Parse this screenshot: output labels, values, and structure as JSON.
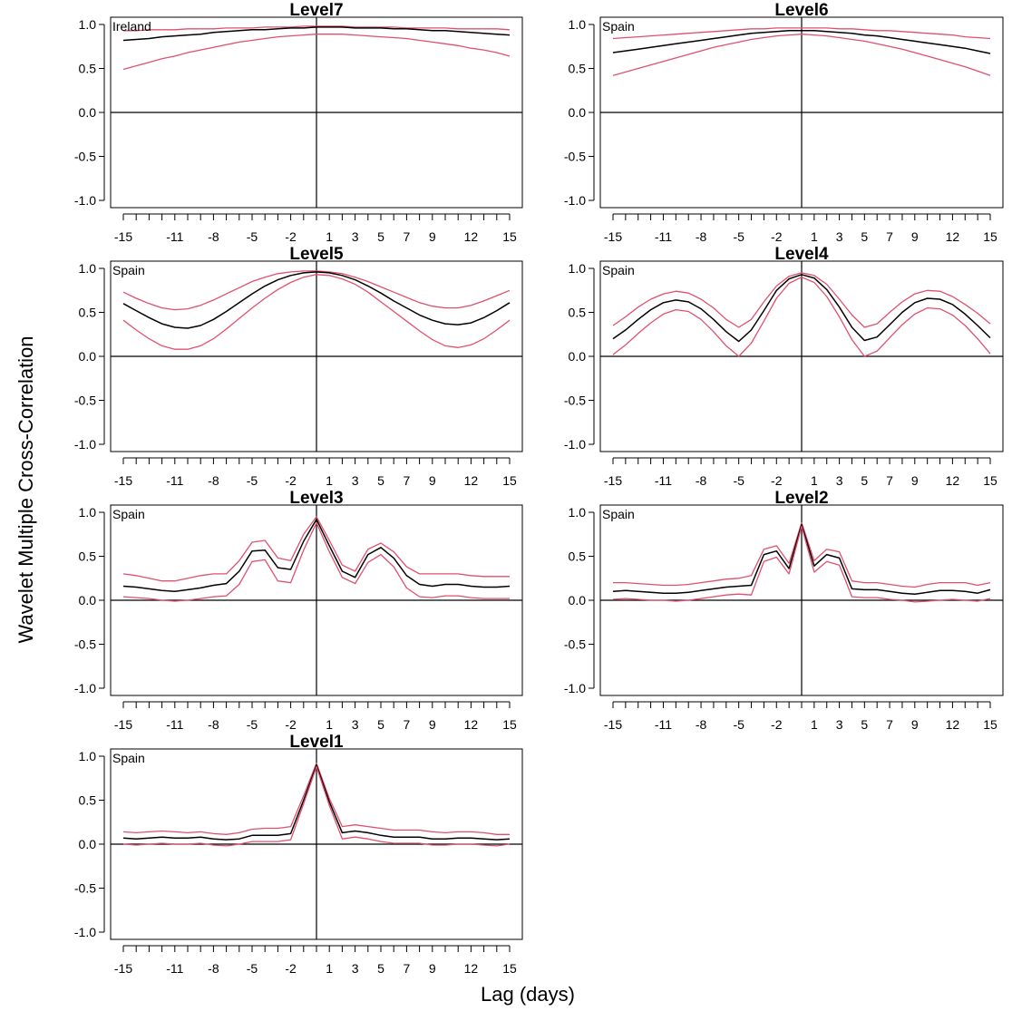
{
  "figure": {
    "ylabel": "Wavelet Multiple Cross-Correlation",
    "xlabel": "Lag (days)"
  },
  "colors": {
    "estimate": "#000000",
    "bounds": "#e0506e"
  },
  "chart_data": [
    {
      "type": "line",
      "title": "Level7",
      "region_label": "Ireland",
      "x": [
        -15,
        -14,
        -13,
        -12,
        -11,
        -10,
        -9,
        -8,
        -7,
        -6,
        -5,
        -4,
        -3,
        -2,
        -1,
        0,
        1,
        2,
        3,
        4,
        5,
        6,
        7,
        8,
        9,
        10,
        11,
        12,
        13,
        14,
        15
      ],
      "x_tick_labels": [
        "-15",
        "-11",
        "-8",
        "-5",
        "-2",
        "1",
        "3",
        "5",
        "7",
        "9",
        "12",
        "15"
      ],
      "ylim": [
        -1.0,
        1.0
      ],
      "y_ticks": [
        "1.0",
        "0.5",
        "0.0",
        "-0.5",
        "-1.0"
      ],
      "series": [
        {
          "role": "upper",
          "values": [
            0.93,
            0.93,
            0.94,
            0.94,
            0.94,
            0.95,
            0.95,
            0.95,
            0.96,
            0.96,
            0.96,
            0.97,
            0.97,
            0.97,
            0.98,
            0.98,
            0.98,
            0.98,
            0.97,
            0.97,
            0.97,
            0.97,
            0.96,
            0.96,
            0.96,
            0.96,
            0.95,
            0.95,
            0.95,
            0.95,
            0.94
          ]
        },
        {
          "role": "estimate",
          "values": [
            0.82,
            0.83,
            0.84,
            0.86,
            0.87,
            0.88,
            0.89,
            0.91,
            0.92,
            0.93,
            0.94,
            0.94,
            0.95,
            0.96,
            0.96,
            0.97,
            0.97,
            0.97,
            0.96,
            0.96,
            0.96,
            0.95,
            0.95,
            0.94,
            0.93,
            0.93,
            0.92,
            0.91,
            0.9,
            0.89,
            0.88
          ]
        },
        {
          "role": "lower",
          "values": [
            0.49,
            0.53,
            0.57,
            0.61,
            0.64,
            0.68,
            0.71,
            0.74,
            0.77,
            0.8,
            0.82,
            0.84,
            0.86,
            0.87,
            0.88,
            0.89,
            0.89,
            0.89,
            0.88,
            0.87,
            0.86,
            0.85,
            0.84,
            0.82,
            0.8,
            0.78,
            0.76,
            0.73,
            0.71,
            0.68,
            0.64
          ]
        }
      ]
    },
    {
      "type": "line",
      "title": "Level6",
      "region_label": "Spain",
      "x": [
        -15,
        -14,
        -13,
        -12,
        -11,
        -10,
        -9,
        -8,
        -7,
        -6,
        -5,
        -4,
        -3,
        -2,
        -1,
        0,
        1,
        2,
        3,
        4,
        5,
        6,
        7,
        8,
        9,
        10,
        11,
        12,
        13,
        14,
        15
      ],
      "x_tick_labels": [
        "-15",
        "-11",
        "-8",
        "-5",
        "-2",
        "1",
        "3",
        "5",
        "7",
        "9",
        "12",
        "15"
      ],
      "ylim": [
        -1.0,
        1.0
      ],
      "y_ticks": [
        "1.0",
        "0.5",
        "0.0",
        "-0.5",
        "-1.0"
      ],
      "series": [
        {
          "role": "upper",
          "values": [
            0.84,
            0.85,
            0.86,
            0.87,
            0.88,
            0.89,
            0.9,
            0.91,
            0.92,
            0.93,
            0.94,
            0.95,
            0.95,
            0.96,
            0.96,
            0.96,
            0.96,
            0.96,
            0.95,
            0.95,
            0.94,
            0.93,
            0.93,
            0.92,
            0.91,
            0.9,
            0.89,
            0.88,
            0.86,
            0.85,
            0.84
          ]
        },
        {
          "role": "estimate",
          "values": [
            0.68,
            0.7,
            0.72,
            0.74,
            0.76,
            0.78,
            0.8,
            0.82,
            0.84,
            0.86,
            0.88,
            0.9,
            0.91,
            0.92,
            0.93,
            0.93,
            0.93,
            0.92,
            0.91,
            0.9,
            0.88,
            0.87,
            0.85,
            0.83,
            0.81,
            0.79,
            0.77,
            0.75,
            0.73,
            0.7,
            0.67
          ]
        },
        {
          "role": "lower",
          "values": [
            0.42,
            0.46,
            0.5,
            0.54,
            0.58,
            0.62,
            0.66,
            0.7,
            0.74,
            0.77,
            0.8,
            0.83,
            0.85,
            0.87,
            0.88,
            0.89,
            0.88,
            0.87,
            0.85,
            0.83,
            0.81,
            0.78,
            0.75,
            0.72,
            0.68,
            0.64,
            0.6,
            0.56,
            0.52,
            0.47,
            0.42
          ]
        }
      ]
    },
    {
      "type": "line",
      "title": "Level5",
      "region_label": "Spain",
      "x": [
        -15,
        -14,
        -13,
        -12,
        -11,
        -10,
        -9,
        -8,
        -7,
        -6,
        -5,
        -4,
        -3,
        -2,
        -1,
        0,
        1,
        2,
        3,
        4,
        5,
        6,
        7,
        8,
        9,
        10,
        11,
        12,
        13,
        14,
        15
      ],
      "x_tick_labels": [
        "-15",
        "-11",
        "-8",
        "-5",
        "-2",
        "1",
        "3",
        "5",
        "7",
        "9",
        "12",
        "15"
      ],
      "ylim": [
        -1.0,
        1.0
      ],
      "y_ticks": [
        "1.0",
        "0.5",
        "0.0",
        "-0.5",
        "-1.0"
      ],
      "series": [
        {
          "role": "upper",
          "values": [
            0.73,
            0.66,
            0.6,
            0.55,
            0.53,
            0.54,
            0.58,
            0.64,
            0.71,
            0.78,
            0.85,
            0.9,
            0.94,
            0.96,
            0.97,
            0.97,
            0.96,
            0.94,
            0.9,
            0.85,
            0.79,
            0.73,
            0.67,
            0.61,
            0.57,
            0.55,
            0.55,
            0.58,
            0.63,
            0.69,
            0.75
          ]
        },
        {
          "role": "estimate",
          "values": [
            0.6,
            0.52,
            0.44,
            0.37,
            0.33,
            0.32,
            0.35,
            0.42,
            0.51,
            0.61,
            0.71,
            0.8,
            0.87,
            0.92,
            0.95,
            0.96,
            0.95,
            0.92,
            0.87,
            0.8,
            0.72,
            0.63,
            0.55,
            0.47,
            0.41,
            0.37,
            0.36,
            0.38,
            0.44,
            0.52,
            0.61
          ]
        },
        {
          "role": "lower",
          "values": [
            0.41,
            0.3,
            0.2,
            0.12,
            0.08,
            0.08,
            0.12,
            0.2,
            0.31,
            0.43,
            0.55,
            0.66,
            0.76,
            0.84,
            0.9,
            0.93,
            0.92,
            0.88,
            0.82,
            0.73,
            0.62,
            0.51,
            0.4,
            0.29,
            0.19,
            0.12,
            0.1,
            0.13,
            0.2,
            0.3,
            0.41
          ]
        }
      ]
    },
    {
      "type": "line",
      "title": "Level4",
      "region_label": "Spain",
      "x": [
        -15,
        -14,
        -13,
        -12,
        -11,
        -10,
        -9,
        -8,
        -7,
        -6,
        -5,
        -4,
        -3,
        -2,
        -1,
        0,
        1,
        2,
        3,
        4,
        5,
        6,
        7,
        8,
        9,
        10,
        11,
        12,
        13,
        14,
        15
      ],
      "x_tick_labels": [
        "-15",
        "-11",
        "-8",
        "-5",
        "-2",
        "1",
        "3",
        "5",
        "7",
        "9",
        "12",
        "15"
      ],
      "ylim": [
        -1.0,
        1.0
      ],
      "y_ticks": [
        "1.0",
        "0.5",
        "0.0",
        "-0.5",
        "-1.0"
      ],
      "series": [
        {
          "role": "upper",
          "values": [
            0.35,
            0.45,
            0.56,
            0.65,
            0.71,
            0.74,
            0.72,
            0.65,
            0.55,
            0.42,
            0.33,
            0.42,
            0.62,
            0.8,
            0.91,
            0.95,
            0.92,
            0.82,
            0.65,
            0.47,
            0.33,
            0.37,
            0.5,
            0.62,
            0.71,
            0.75,
            0.74,
            0.68,
            0.59,
            0.49,
            0.37
          ]
        },
        {
          "role": "estimate",
          "values": [
            0.2,
            0.3,
            0.42,
            0.53,
            0.61,
            0.64,
            0.62,
            0.54,
            0.42,
            0.28,
            0.17,
            0.3,
            0.52,
            0.75,
            0.88,
            0.93,
            0.89,
            0.76,
            0.56,
            0.33,
            0.18,
            0.22,
            0.36,
            0.5,
            0.61,
            0.66,
            0.65,
            0.59,
            0.48,
            0.35,
            0.21
          ]
        },
        {
          "role": "lower",
          "values": [
            0.02,
            0.13,
            0.26,
            0.38,
            0.48,
            0.53,
            0.51,
            0.42,
            0.28,
            0.12,
            0.0,
            0.15,
            0.4,
            0.66,
            0.83,
            0.9,
            0.84,
            0.68,
            0.45,
            0.19,
            0.0,
            0.06,
            0.21,
            0.36,
            0.48,
            0.55,
            0.54,
            0.47,
            0.35,
            0.2,
            0.03
          ]
        }
      ]
    },
    {
      "type": "line",
      "title": "Level3",
      "region_label": "Spain",
      "x": [
        -15,
        -14,
        -13,
        -12,
        -11,
        -10,
        -9,
        -8,
        -7,
        -6,
        -5,
        -4,
        -3,
        -2,
        -1,
        0,
        1,
        2,
        3,
        4,
        5,
        6,
        7,
        8,
        9,
        10,
        11,
        12,
        13,
        14,
        15
      ],
      "x_tick_labels": [
        "-15",
        "-11",
        "-8",
        "-5",
        "-2",
        "1",
        "3",
        "5",
        "7",
        "9",
        "12",
        "15"
      ],
      "ylim": [
        -1.0,
        1.0
      ],
      "y_ticks": [
        "1.0",
        "0.5",
        "0.0",
        "-0.5",
        "-1.0"
      ],
      "series": [
        {
          "role": "upper",
          "values": [
            0.3,
            0.28,
            0.25,
            0.22,
            0.22,
            0.25,
            0.28,
            0.3,
            0.3,
            0.45,
            0.66,
            0.68,
            0.48,
            0.45,
            0.75,
            0.95,
            0.68,
            0.4,
            0.33,
            0.58,
            0.65,
            0.55,
            0.38,
            0.3,
            0.3,
            0.3,
            0.3,
            0.28,
            0.27,
            0.27,
            0.27
          ]
        },
        {
          "role": "estimate",
          "values": [
            0.16,
            0.15,
            0.13,
            0.11,
            0.1,
            0.12,
            0.14,
            0.17,
            0.19,
            0.33,
            0.56,
            0.57,
            0.37,
            0.35,
            0.67,
            0.92,
            0.62,
            0.33,
            0.26,
            0.52,
            0.6,
            0.48,
            0.28,
            0.18,
            0.16,
            0.18,
            0.18,
            0.16,
            0.15,
            0.15,
            0.16
          ]
        },
        {
          "role": "lower",
          "values": [
            0.04,
            0.03,
            0.02,
            0.0,
            -0.01,
            0.0,
            0.02,
            0.04,
            0.05,
            0.18,
            0.44,
            0.46,
            0.22,
            0.2,
            0.57,
            0.88,
            0.55,
            0.26,
            0.19,
            0.43,
            0.52,
            0.38,
            0.14,
            0.04,
            0.03,
            0.05,
            0.05,
            0.03,
            0.02,
            0.02,
            0.02
          ]
        }
      ]
    },
    {
      "type": "line",
      "title": "Level2",
      "region_label": "Spain",
      "x": [
        -15,
        -14,
        -13,
        -12,
        -11,
        -10,
        -9,
        -8,
        -7,
        -6,
        -5,
        -4,
        -3,
        -2,
        -1,
        0,
        1,
        2,
        3,
        4,
        5,
        6,
        7,
        8,
        9,
        10,
        11,
        12,
        13,
        14,
        15
      ],
      "x_tick_labels": [
        "-15",
        "-11",
        "-8",
        "-5",
        "-2",
        "1",
        "3",
        "5",
        "7",
        "9",
        "12",
        "15"
      ],
      "ylim": [
        -1.0,
        1.0
      ],
      "y_ticks": [
        "1.0",
        "0.5",
        "0.0",
        "-0.5",
        "-1.0"
      ],
      "series": [
        {
          "role": "upper",
          "values": [
            0.2,
            0.2,
            0.19,
            0.18,
            0.17,
            0.17,
            0.18,
            0.2,
            0.22,
            0.24,
            0.25,
            0.28,
            0.58,
            0.62,
            0.42,
            0.88,
            0.45,
            0.58,
            0.55,
            0.22,
            0.2,
            0.2,
            0.18,
            0.16,
            0.15,
            0.18,
            0.2,
            0.2,
            0.2,
            0.17,
            0.2
          ]
        },
        {
          "role": "estimate",
          "values": [
            0.1,
            0.11,
            0.1,
            0.09,
            0.08,
            0.08,
            0.09,
            0.11,
            0.13,
            0.15,
            0.16,
            0.17,
            0.52,
            0.56,
            0.36,
            0.86,
            0.39,
            0.52,
            0.48,
            0.13,
            0.12,
            0.12,
            0.1,
            0.08,
            0.07,
            0.09,
            0.11,
            0.11,
            0.1,
            0.08,
            0.12
          ]
        },
        {
          "role": "lower",
          "values": [
            0.01,
            0.02,
            0.01,
            0.0,
            0.0,
            -0.01,
            0.0,
            0.02,
            0.04,
            0.06,
            0.07,
            0.06,
            0.44,
            0.49,
            0.3,
            0.84,
            0.32,
            0.44,
            0.4,
            0.04,
            0.03,
            0.03,
            0.01,
            0.0,
            -0.02,
            -0.01,
            0.0,
            0.01,
            0.0,
            -0.01,
            0.02
          ]
        }
      ]
    },
    {
      "type": "line",
      "title": "Level1",
      "region_label": "Spain",
      "x": [
        -15,
        -14,
        -13,
        -12,
        -11,
        -10,
        -9,
        -8,
        -7,
        -6,
        -5,
        -4,
        -3,
        -2,
        -1,
        0,
        1,
        2,
        3,
        4,
        5,
        6,
        7,
        8,
        9,
        10,
        11,
        12,
        13,
        14,
        15
      ],
      "x_tick_labels": [
        "-15",
        "-11",
        "-8",
        "-5",
        "-2",
        "1",
        "3",
        "5",
        "7",
        "9",
        "12",
        "15"
      ],
      "ylim": [
        -1.0,
        1.0
      ],
      "y_ticks": [
        "1.0",
        "0.5",
        "0.0",
        "-0.5",
        "-1.0"
      ],
      "series": [
        {
          "role": "upper",
          "values": [
            0.14,
            0.13,
            0.14,
            0.15,
            0.14,
            0.13,
            0.14,
            0.12,
            0.11,
            0.13,
            0.17,
            0.18,
            0.18,
            0.2,
            0.55,
            0.92,
            0.52,
            0.2,
            0.22,
            0.2,
            0.18,
            0.16,
            0.16,
            0.16,
            0.14,
            0.13,
            0.14,
            0.14,
            0.13,
            0.11,
            0.11
          ]
        },
        {
          "role": "estimate",
          "values": [
            0.07,
            0.06,
            0.07,
            0.08,
            0.07,
            0.07,
            0.08,
            0.06,
            0.05,
            0.06,
            0.1,
            0.1,
            0.1,
            0.12,
            0.5,
            0.9,
            0.48,
            0.13,
            0.15,
            0.13,
            0.1,
            0.08,
            0.08,
            0.08,
            0.06,
            0.06,
            0.07,
            0.07,
            0.06,
            0.05,
            0.06
          ]
        },
        {
          "role": "lower",
          "values": [
            0.0,
            -0.01,
            0.0,
            0.01,
            0.0,
            0.0,
            0.01,
            -0.01,
            -0.02,
            0.0,
            0.03,
            0.03,
            0.03,
            0.05,
            0.46,
            0.88,
            0.44,
            0.06,
            0.08,
            0.06,
            0.03,
            0.01,
            0.01,
            0.01,
            -0.01,
            -0.01,
            0.0,
            0.0,
            -0.01,
            -0.02,
            0.0
          ]
        }
      ]
    }
  ]
}
